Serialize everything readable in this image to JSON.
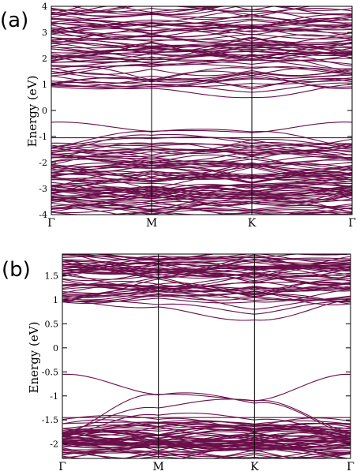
{
  "chart_data": [
    {
      "type": "line",
      "panel_label": "(a)",
      "title": "",
      "ylabel": "Energy (eV)",
      "xlabel": "",
      "ylim": [
        -4,
        4
      ],
      "xlim": [
        0,
        3
      ],
      "y_ticks": [
        "-4",
        "-3",
        "-2",
        "-1",
        "0",
        "1",
        "2",
        "3",
        "4"
      ],
      "kpoints": [
        {
          "label": "Γ",
          "x": 0
        },
        {
          "label": "M",
          "x": 1
        },
        {
          "label": "K",
          "x": 2
        },
        {
          "label": "Γ",
          "x": 3
        }
      ],
      "line_color": "#6b0f4a",
      "band_gap": {
        "vbm": -0.45,
        "cbm": 0.5
      },
      "grid": false,
      "legend": "none"
    },
    {
      "type": "line",
      "panel_label": "(b)",
      "title": "",
      "ylabel": "Energy (eV)",
      "xlabel": "",
      "ylim": [
        -2.3,
        1.95
      ],
      "xlim": [
        0,
        3
      ],
      "y_ticks": [
        "-2",
        "-1.5",
        "-1",
        "-0.5",
        "0",
        "0.5",
        "1",
        "1.5"
      ],
      "kpoints": [
        {
          "label": "Γ",
          "x": 0
        },
        {
          "label": "M",
          "x": 1
        },
        {
          "label": "K",
          "x": 2
        },
        {
          "label": "Γ",
          "x": 3
        }
      ],
      "line_color": "#6b0f4a",
      "band_gap": {
        "vbm": -0.55,
        "cbm": 0.58
      },
      "grid": false,
      "legend": "none"
    }
  ]
}
